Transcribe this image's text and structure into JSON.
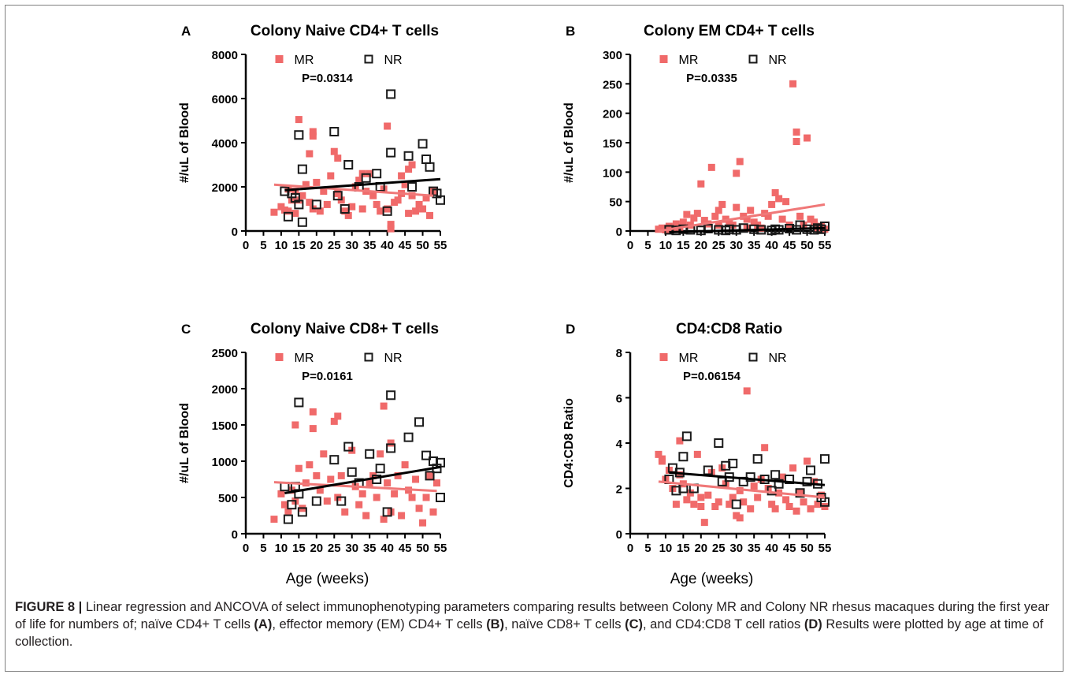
{
  "figure": {
    "colors": {
      "mr": "#f06a6a",
      "nr": "#1a1a1a",
      "mr_line": "#f07878",
      "nr_line": "#000000"
    },
    "x_common_label": "Age (weeks)"
  },
  "chart_data": [
    {
      "type": "scatter",
      "panel": "A",
      "title": "Colony Naive CD4+ T cells",
      "ylabel": "#/uL of Blood",
      "xlabel": "",
      "xlim": [
        0,
        55
      ],
      "ylim": [
        0,
        8000
      ],
      "xticks": [
        "0",
        "5",
        "10",
        "15",
        "20",
        "25",
        "30",
        "35",
        "40",
        "45",
        "50",
        "55"
      ],
      "yticks": [
        "0",
        "2000",
        "4000",
        "6000",
        "8000"
      ],
      "annotation": "P=0.0314",
      "legend": [
        "MR",
        "NR"
      ],
      "series": [
        {
          "name": "MR",
          "marker": "filled-square",
          "x": [
            8,
            10,
            11,
            12,
            13,
            14,
            14,
            15,
            16,
            17,
            18,
            18,
            19,
            19,
            20,
            21,
            22,
            24,
            25,
            26,
            26,
            27,
            28,
            30,
            31,
            32,
            33,
            34,
            35,
            36,
            37,
            38,
            39,
            40,
            40,
            41,
            41,
            42,
            43,
            44,
            45,
            46,
            46,
            47,
            48,
            49,
            50,
            51,
            52,
            53,
            12,
            15,
            19,
            23,
            29,
            33,
            44,
            47
          ],
          "y": [
            850,
            1100,
            950,
            1900,
            1400,
            800,
            1800,
            5050,
            1600,
            2100,
            3500,
            1300,
            4500,
            4300,
            2200,
            900,
            1800,
            2500,
            3600,
            3300,
            1700,
            1400,
            900,
            1100,
            2000,
            2300,
            1000,
            1800,
            2600,
            1600,
            1200,
            900,
            1900,
            4750,
            1000,
            300,
            100,
            1300,
            1400,
            2500,
            2100,
            2800,
            800,
            1600,
            900,
            1200,
            1000,
            1500,
            700,
            1800,
            900,
            1400,
            1000,
            1200,
            700,
            2600,
            1700,
            3000
          ],
          "fit": [
            2100,
            1600
          ]
        },
        {
          "name": "NR",
          "marker": "open-square",
          "x": [
            11,
            12,
            13,
            14,
            15,
            15,
            16,
            16,
            20,
            25,
            26,
            28,
            29,
            32,
            34,
            37,
            38,
            40,
            41,
            41,
            46,
            47,
            50,
            51,
            52,
            53,
            54,
            55
          ],
          "y": [
            1800,
            650,
            1700,
            1500,
            4350,
            1200,
            2800,
            400,
            1200,
            4500,
            1600,
            1000,
            3000,
            2000,
            2400,
            2600,
            2000,
            900,
            6200,
            3550,
            3400,
            2000,
            3950,
            3250,
            2900,
            1800,
            1700,
            1400
          ],
          "fit": [
            1850,
            2350
          ]
        }
      ]
    },
    {
      "type": "scatter",
      "panel": "B",
      "title": "Colony EM CD4+ T cells",
      "ylabel": "#/uL of Blood",
      "xlabel": "",
      "xlim": [
        0,
        55
      ],
      "ylim": [
        0,
        300
      ],
      "xticks": [
        "0",
        "5",
        "10",
        "15",
        "20",
        "25",
        "30",
        "35",
        "40",
        "45",
        "50",
        "55"
      ],
      "yticks": [
        "0",
        "50",
        "100",
        "150",
        "200",
        "250",
        "300"
      ],
      "annotation": "P=0.0335",
      "legend": [
        "MR",
        "NR"
      ],
      "series": [
        {
          "name": "MR",
          "marker": "filled-square",
          "x": [
            8,
            9,
            10,
            11,
            12,
            13,
            14,
            15,
            16,
            17,
            18,
            19,
            20,
            21,
            22,
            23,
            24,
            25,
            26,
            27,
            28,
            29,
            30,
            31,
            32,
            33,
            34,
            35,
            36,
            37,
            38,
            39,
            40,
            41,
            42,
            43,
            44,
            45,
            46,
            47,
            47,
            48,
            49,
            50,
            51,
            52,
            53,
            54,
            55,
            30,
            25,
            33
          ],
          "y": [
            3,
            5,
            2,
            8,
            4,
            12,
            6,
            15,
            28,
            10,
            22,
            30,
            80,
            18,
            12,
            108,
            25,
            35,
            45,
            20,
            15,
            10,
            98,
            118,
            25,
            20,
            35,
            15,
            10,
            5,
            30,
            25,
            45,
            65,
            55,
            20,
            50,
            10,
            250,
            168,
            152,
            25,
            10,
            158,
            20,
            15,
            5,
            8,
            3,
            40,
            10,
            5
          ],
          "fit": [
            0,
            45
          ]
        },
        {
          "name": "NR",
          "marker": "open-square",
          "x": [
            11,
            13,
            15,
            17,
            20,
            22,
            25,
            27,
            28,
            30,
            32,
            35,
            37,
            40,
            41,
            42,
            45,
            47,
            48,
            50,
            52,
            53,
            54,
            55
          ],
          "y": [
            2,
            1,
            3,
            2,
            1,
            4,
            2,
            1,
            3,
            2,
            5,
            3,
            2,
            1,
            3,
            2,
            4,
            2,
            10,
            3,
            2,
            5,
            3,
            8
          ],
          "fit": [
            -2,
            5
          ]
        }
      ]
    },
    {
      "type": "scatter",
      "panel": "C",
      "title": "Colony Naive CD8+ T cells",
      "ylabel": "#/uL of Blood",
      "xlabel": "Age (weeks)",
      "xlim": [
        0,
        55
      ],
      "ylim": [
        0,
        2500
      ],
      "xticks": [
        "0",
        "5",
        "10",
        "15",
        "20",
        "25",
        "30",
        "35",
        "40",
        "45",
        "50",
        "55"
      ],
      "yticks": [
        "0",
        "500",
        "1000",
        "1500",
        "2000",
        "2500"
      ],
      "annotation": "P=0.0161",
      "legend": [
        "MR",
        "NR"
      ],
      "series": [
        {
          "name": "MR",
          "marker": "filled-square",
          "x": [
            8,
            10,
            11,
            12,
            13,
            14,
            14,
            15,
            16,
            17,
            18,
            19,
            19,
            20,
            21,
            22,
            23,
            24,
            25,
            26,
            26,
            27,
            28,
            30,
            31,
            32,
            33,
            34,
            35,
            36,
            37,
            38,
            39,
            39,
            40,
            41,
            41,
            42,
            43,
            44,
            45,
            46,
            47,
            48,
            49,
            50,
            51,
            52,
            53,
            54
          ],
          "y": [
            200,
            550,
            400,
            300,
            600,
            1500,
            450,
            900,
            350,
            700,
            950,
            1680,
            1450,
            800,
            600,
            1100,
            450,
            750,
            1550,
            1620,
            500,
            800,
            300,
            1150,
            650,
            400,
            550,
            250,
            700,
            800,
            500,
            1100,
            1760,
            200,
            700,
            1250,
            300,
            550,
            800,
            250,
            950,
            600,
            500,
            750,
            350,
            150,
            500,
            800,
            300,
            700
          ],
          "fit": [
            710,
            590
          ]
        },
        {
          "name": "NR",
          "marker": "open-square",
          "x": [
            11,
            12,
            13,
            14,
            15,
            15,
            16,
            20,
            25,
            27,
            29,
            30,
            32,
            35,
            37,
            38,
            40,
            41,
            41,
            46,
            49,
            51,
            52,
            53,
            54,
            55,
            55
          ],
          "y": [
            650,
            200,
            400,
            650,
            1810,
            550,
            300,
            450,
            1020,
            450,
            1200,
            850,
            700,
            1100,
            750,
            900,
            300,
            1910,
            1180,
            1330,
            1540,
            1080,
            800,
            1000,
            900,
            980,
            500
          ],
          "fit": [
            560,
            920
          ]
        }
      ]
    },
    {
      "type": "scatter",
      "panel": "D",
      "title": "CD4:CD8 Ratio",
      "ylabel": "CD4:CD8 Ratio",
      "xlabel": "Age (weeks)",
      "xlim": [
        0,
        55
      ],
      "ylim": [
        0,
        8
      ],
      "xticks": [
        "0",
        "5",
        "10",
        "15",
        "20",
        "25",
        "30",
        "35",
        "40",
        "45",
        "50",
        "55"
      ],
      "yticks": [
        "0",
        "2",
        "4",
        "6",
        "8"
      ],
      "annotation": "P=0.06154",
      "legend": [
        "MR",
        "NR"
      ],
      "series": [
        {
          "name": "MR",
          "marker": "filled-square",
          "x": [
            8,
            9,
            10,
            11,
            12,
            13,
            14,
            15,
            16,
            17,
            18,
            19,
            20,
            21,
            22,
            23,
            24,
            25,
            26,
            27,
            28,
            29,
            30,
            31,
            32,
            33,
            34,
            35,
            36,
            37,
            38,
            39,
            40,
            41,
            42,
            43,
            44,
            45,
            46,
            47,
            48,
            49,
            50,
            51,
            52,
            53,
            54,
            55,
            9,
            14,
            20,
            31
          ],
          "y": [
            3.5,
            3.3,
            2.4,
            2.8,
            2.0,
            1.3,
            4.1,
            2.2,
            1.5,
            1.8,
            1.3,
            3.5,
            1.6,
            0.5,
            1.7,
            2.7,
            1.2,
            1.4,
            2.9,
            2.2,
            1.3,
            1.6,
            0.8,
            1.9,
            1.4,
            6.3,
            1.1,
            2.1,
            1.6,
            2.4,
            3.8,
            2.0,
            1.3,
            1.1,
            1.8,
            2.5,
            1.5,
            1.2,
            2.9,
            1.0,
            1.8,
            1.4,
            3.2,
            1.1,
            2.3,
            1.3,
            1.7,
            1.2,
            3.2,
            2.6,
            1.2,
            0.7
          ],
          "fit": [
            2.3,
            1.6
          ]
        },
        {
          "name": "NR",
          "marker": "open-square",
          "x": [
            11,
            12,
            13,
            14,
            15,
            15,
            16,
            18,
            22,
            25,
            26,
            27,
            28,
            29,
            30,
            32,
            34,
            36,
            38,
            40,
            41,
            42,
            45,
            48,
            50,
            51,
            53,
            54,
            55,
            55
          ],
          "y": [
            2.4,
            2.9,
            1.9,
            2.7,
            3.4,
            2.0,
            4.3,
            2.0,
            2.8,
            4.0,
            2.3,
            3.0,
            2.5,
            3.1,
            1.3,
            2.3,
            2.5,
            3.3,
            2.4,
            1.9,
            2.6,
            2.2,
            2.4,
            1.8,
            2.3,
            2.8,
            2.2,
            1.6,
            3.3,
            1.4
          ],
          "fit": [
            2.7,
            2.15
          ]
        }
      ]
    }
  ],
  "caption": {
    "label": "FIGURE 8 |",
    "parts": [
      " Linear regression and ANCOVA of select immunophenotyping parameters comparing results between Colony MR and Colony NR rhesus macaques during the first year of life for numbers of; naïve CD4+ T cells ",
      "(A)",
      ", effector memory (EM) CD4+ T cells ",
      "(B)",
      ", naïve CD8+ T cells ",
      "(C)",
      ", and CD4:CD8 T cell ratios ",
      "(D)",
      " Results were plotted by age at time of collection."
    ]
  }
}
